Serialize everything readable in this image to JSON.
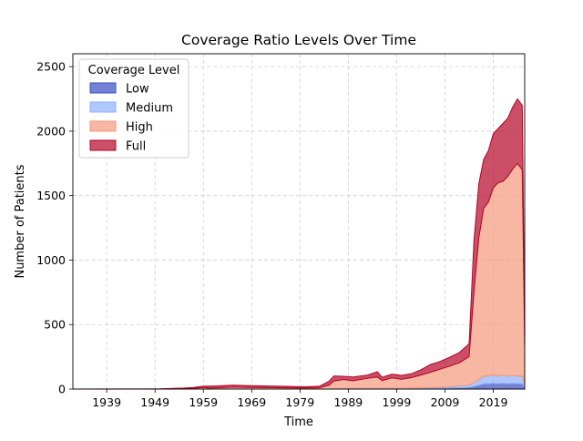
{
  "chart_data": {
    "type": "area",
    "stacked": true,
    "title": "Coverage Ratio Levels Over Time",
    "xlabel": "Time",
    "ylabel": "Number of Patients",
    "xlim": [
      1932,
      2025.5
    ],
    "ylim": [
      0,
      2600
    ],
    "x_ticks": [
      1939,
      1949,
      1959,
      1969,
      1979,
      1989,
      1999,
      2009,
      2019
    ],
    "y_ticks": [
      0,
      500,
      1000,
      1500,
      2000,
      2500
    ],
    "grid": true,
    "legend": {
      "title": "Coverage Level",
      "placement": "top-left"
    },
    "x": [
      1932,
      1950,
      1955,
      1957,
      1959,
      1960,
      1962,
      1965,
      1969,
      1975,
      1980,
      1983,
      1985,
      1986,
      1988,
      1990,
      1993,
      1995,
      1996,
      1998,
      2000,
      2002,
      2004,
      2006,
      2008,
      2010,
      2012,
      2014,
      2015,
      2016,
      2017,
      2018,
      2019,
      2020,
      2021,
      2022,
      2023,
      2024,
      2025,
      2025.5
    ],
    "series": [
      {
        "name": "Low",
        "color": "#3b4cc0",
        "values": [
          0,
          0,
          0,
          0,
          0,
          0,
          0,
          0,
          0,
          0,
          0,
          0,
          0,
          1,
          2,
          2,
          2,
          2,
          3,
          3,
          3,
          4,
          4,
          5,
          6,
          8,
          10,
          12,
          20,
          30,
          40,
          40,
          45,
          40,
          45,
          40,
          45,
          40,
          40,
          10
        ]
      },
      {
        "name": "Medium",
        "color": "#8db0fe",
        "values": [
          0,
          0,
          0,
          0,
          0,
          0,
          0,
          0,
          0,
          0,
          0,
          0,
          0,
          1,
          2,
          2,
          2,
          2,
          3,
          3,
          3,
          4,
          5,
          6,
          8,
          10,
          14,
          20,
          30,
          40,
          60,
          60,
          65,
          60,
          65,
          60,
          60,
          60,
          60,
          20
        ]
      },
      {
        "name": "High",
        "color": "#f4987a",
        "values": [
          0,
          1,
          3,
          5,
          12,
          8,
          10,
          15,
          12,
          10,
          8,
          10,
          30,
          60,
          70,
          60,
          80,
          90,
          60,
          80,
          70,
          80,
          100,
          120,
          140,
          160,
          180,
          220,
          700,
          1100,
          1300,
          1350,
          1450,
          1500,
          1500,
          1550,
          1600,
          1650,
          1600,
          300
        ]
      },
      {
        "name": "Full",
        "color": "#b40426",
        "values": [
          0,
          1,
          5,
          8,
          10,
          15,
          15,
          15,
          15,
          12,
          10,
          12,
          30,
          40,
          25,
          30,
          25,
          40,
          25,
          30,
          30,
          30,
          40,
          60,
          60,
          70,
          80,
          100,
          400,
          420,
          380,
          400,
          420,
          420,
          450,
          450,
          480,
          500,
          500,
          150
        ]
      }
    ]
  }
}
